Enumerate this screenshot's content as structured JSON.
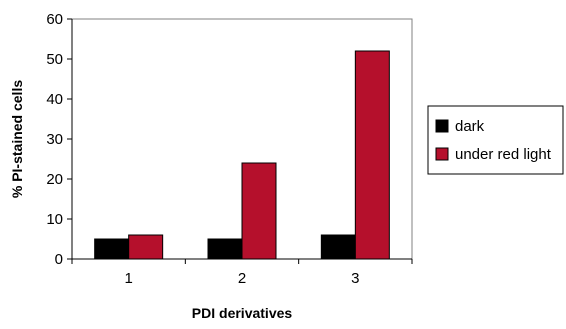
{
  "chart_data": {
    "type": "bar",
    "categories": [
      "1",
      "2",
      "3"
    ],
    "series": [
      {
        "name": "dark",
        "values": [
          5,
          5,
          6
        ],
        "color": "#000000"
      },
      {
        "name": "under red light",
        "values": [
          6,
          24,
          52
        ],
        "color": "#b5102c"
      }
    ],
    "title": "",
    "xlabel": "PDI derivatives",
    "ylabel": "% PI-stained cells",
    "ylim": [
      0,
      60
    ],
    "yticks": [
      "0",
      "10",
      "20",
      "30",
      "40",
      "50",
      "60"
    ],
    "grid": false,
    "legend_position": "right"
  }
}
